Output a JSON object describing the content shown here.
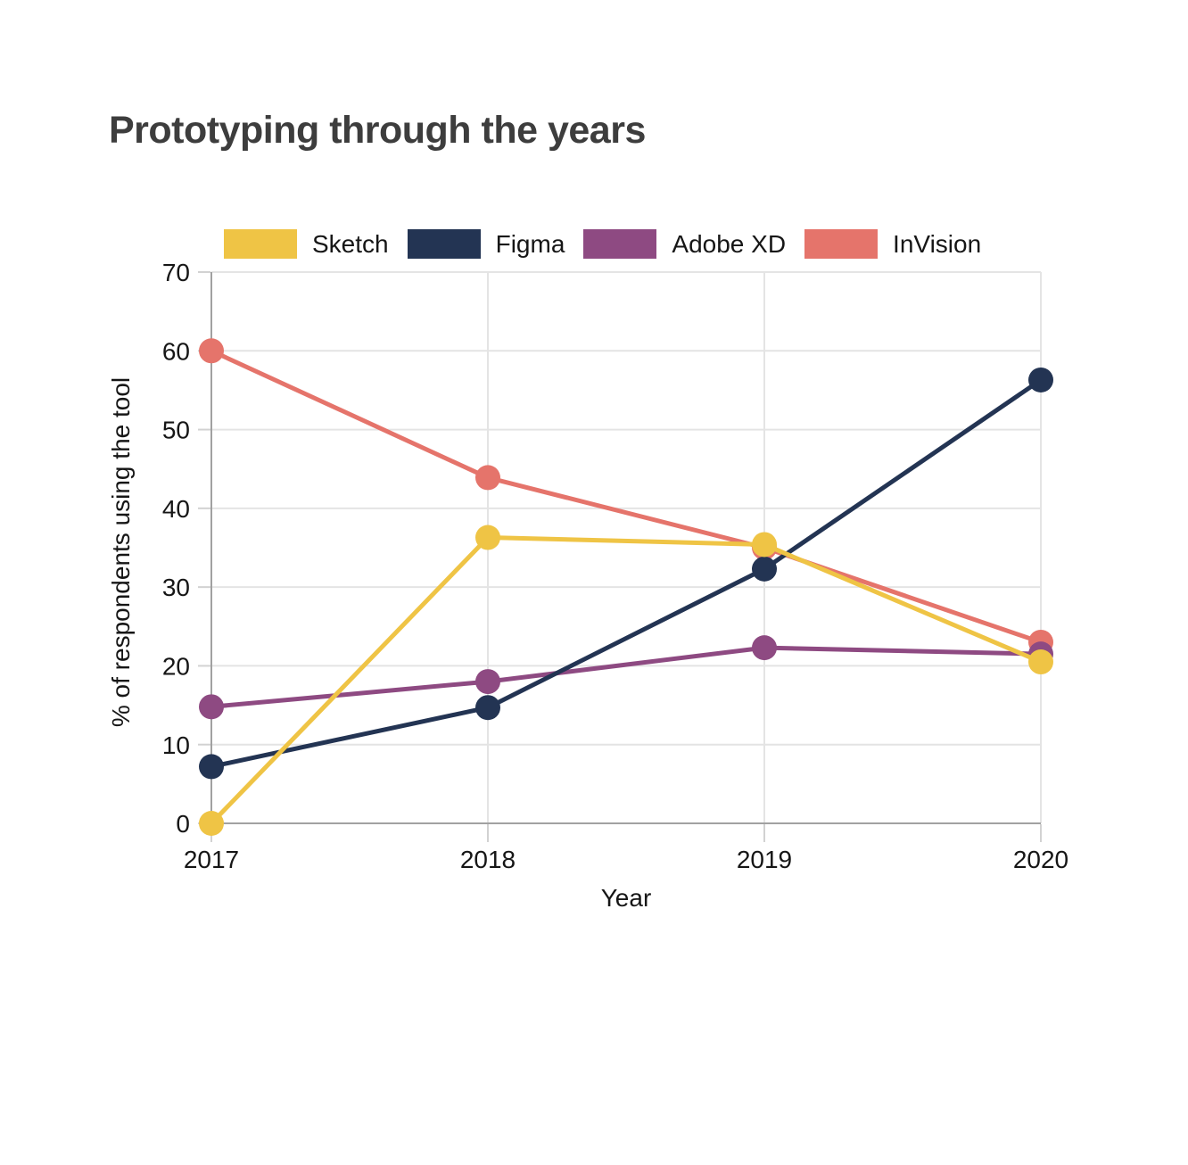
{
  "title": "Prototyping through the years",
  "chart_data": {
    "type": "line",
    "x_categories": [
      "2017",
      "2018",
      "2019",
      "2020"
    ],
    "xlabel": "Year",
    "ylabel": "% of respondents using the tool",
    "ylim": [
      0,
      70
    ],
    "yticks": [
      0,
      10,
      20,
      30,
      40,
      50,
      60,
      70
    ],
    "grid": "on",
    "legend_position": "top",
    "series": [
      {
        "name": "Sketch",
        "color": "#EFC445",
        "values": [
          0,
          36.3,
          35.4,
          20.5
        ]
      },
      {
        "name": "Figma",
        "color": "#233453",
        "values": [
          7.2,
          14.7,
          32.3,
          56.3
        ]
      },
      {
        "name": "Adobe XD",
        "color": "#8E4A82",
        "values": [
          14.8,
          18.0,
          22.3,
          21.5
        ]
      },
      {
        "name": "InVision",
        "color": "#E5746B",
        "values": [
          60.0,
          43.9,
          35.0,
          23.0
        ]
      }
    ]
  },
  "colors": {
    "background": "#ffffff",
    "grid": "#e4e4e4",
    "axis": "#a1a1a1",
    "tick": "#d2d2d2",
    "text": "#161616",
    "title": "#3d3d3d"
  }
}
